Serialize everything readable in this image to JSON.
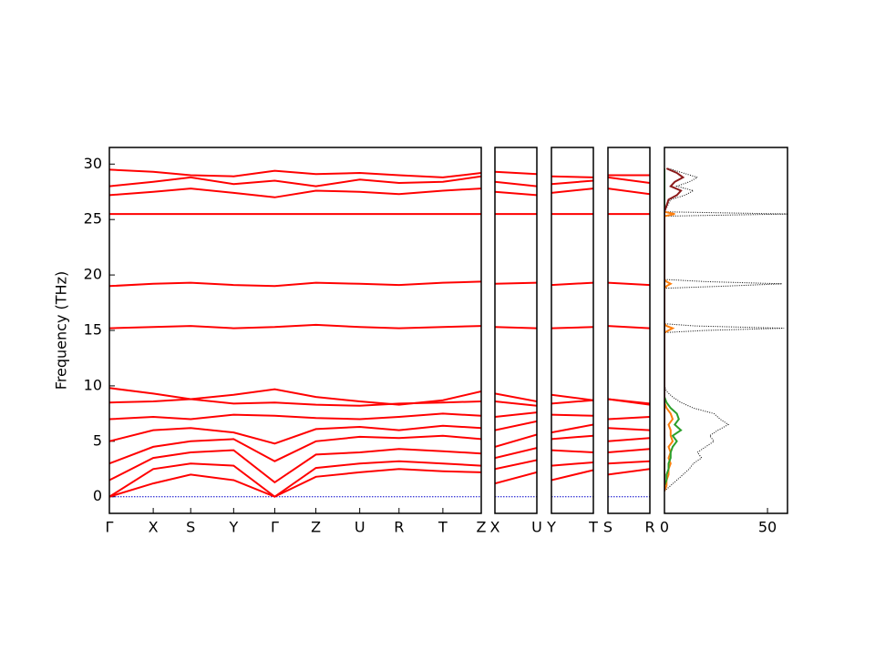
{
  "chart_data": [
    {
      "type": "line",
      "ylabel": "Frequency (THz)",
      "color": "#ff0000",
      "x": [
        0,
        0.48,
        0.89,
        1.36,
        1.81,
        2.26,
        2.74,
        3.17,
        3.65,
        4.07
      ],
      "xlim": [
        0,
        4.07
      ],
      "xticks": [
        {
          "value": 0,
          "label": "Γ"
        },
        {
          "value": 0.48,
          "label": "X"
        },
        {
          "value": 0.89,
          "label": "S"
        },
        {
          "value": 1.36,
          "label": "Y"
        },
        {
          "value": 1.81,
          "label": "Γ"
        },
        {
          "value": 2.26,
          "label": "Z"
        },
        {
          "value": 2.74,
          "label": "U"
        },
        {
          "value": 3.17,
          "label": "R"
        },
        {
          "value": 3.65,
          "label": "T"
        },
        {
          "value": 4.07,
          "label": "Z"
        }
      ],
      "ylim": [
        -1.5,
        31.5
      ],
      "yticks": [
        0,
        5,
        10,
        15,
        20,
        25,
        30
      ],
      "reference_line": {
        "y": 0,
        "color": "#0000cc"
      },
      "series": [
        {
          "values": [
            0,
            1.2,
            2.0,
            1.5,
            0,
            1.8,
            2.2,
            2.5,
            2.3,
            2.2
          ]
        },
        {
          "values": [
            0,
            2.5,
            3.0,
            2.8,
            0,
            2.6,
            3.0,
            3.2,
            3.0,
            2.8
          ]
        },
        {
          "values": [
            1.5,
            3.5,
            4.0,
            4.2,
            1.3,
            3.8,
            4.0,
            4.3,
            4.1,
            3.9
          ]
        },
        {
          "values": [
            3.0,
            4.5,
            5.0,
            5.2,
            3.2,
            5.0,
            5.4,
            5.3,
            5.5,
            5.2
          ]
        },
        {
          "values": [
            5.0,
            6.0,
            6.2,
            5.8,
            4.8,
            6.1,
            6.3,
            6.0,
            6.4,
            6.2
          ]
        },
        {
          "values": [
            7.0,
            7.2,
            7.0,
            7.4,
            7.3,
            7.1,
            7.0,
            7.2,
            7.5,
            7.3
          ]
        },
        {
          "values": [
            8.5,
            8.6,
            8.8,
            8.4,
            8.5,
            8.3,
            8.2,
            8.4,
            8.5,
            8.6
          ]
        },
        {
          "values": [
            9.8,
            9.3,
            8.8,
            9.2,
            9.7,
            9.0,
            8.6,
            8.3,
            8.7,
            9.5
          ]
        },
        {
          "values": [
            15.2,
            15.3,
            15.4,
            15.2,
            15.3,
            15.5,
            15.3,
            15.2,
            15.3,
            15.4
          ]
        },
        {
          "values": [
            19.0,
            19.2,
            19.3,
            19.1,
            19.0,
            19.3,
            19.2,
            19.1,
            19.3,
            19.4
          ]
        },
        {
          "values": [
            25.5,
            25.5,
            25.5,
            25.5,
            25.5,
            25.5,
            25.5,
            25.5,
            25.5,
            25.5
          ]
        },
        {
          "values": [
            27.2,
            27.5,
            27.8,
            27.4,
            27.0,
            27.6,
            27.5,
            27.3,
            27.6,
            27.8
          ]
        },
        {
          "values": [
            28.0,
            28.4,
            28.8,
            28.2,
            28.5,
            28.0,
            28.6,
            28.3,
            28.4,
            28.9
          ]
        },
        {
          "values": [
            29.5,
            29.3,
            29.0,
            28.9,
            29.4,
            29.1,
            29.2,
            29.0,
            28.8,
            29.2
          ]
        }
      ]
    },
    {
      "type": "line",
      "color": "#ff0000",
      "x": [
        0,
        0.46
      ],
      "xlim": [
        0,
        0.46
      ],
      "xticks": [
        {
          "value": 0,
          "label": "X"
        },
        {
          "value": 0.46,
          "label": "U"
        }
      ],
      "ylim": [
        -1.5,
        31.5
      ],
      "reference_line": {
        "y": 0,
        "color": "#0000cc"
      },
      "series": [
        {
          "values": [
            1.2,
            2.2
          ]
        },
        {
          "values": [
            2.5,
            3.3
          ]
        },
        {
          "values": [
            3.5,
            4.4
          ]
        },
        {
          "values": [
            4.5,
            5.6
          ]
        },
        {
          "values": [
            6.0,
            6.8
          ]
        },
        {
          "values": [
            7.2,
            7.6
          ]
        },
        {
          "values": [
            8.6,
            8.2
          ]
        },
        {
          "values": [
            9.3,
            8.6
          ]
        },
        {
          "values": [
            15.3,
            15.2
          ]
        },
        {
          "values": [
            19.2,
            19.3
          ]
        },
        {
          "values": [
            25.5,
            25.5
          ]
        },
        {
          "values": [
            27.5,
            27.2
          ]
        },
        {
          "values": [
            28.4,
            28.0
          ]
        },
        {
          "values": [
            29.3,
            29.1
          ]
        }
      ]
    },
    {
      "type": "line",
      "color": "#ff0000",
      "x": [
        0,
        0.46
      ],
      "xlim": [
        0,
        0.46
      ],
      "xticks": [
        {
          "value": 0,
          "label": "Y"
        },
        {
          "value": 0.46,
          "label": "T"
        }
      ],
      "ylim": [
        -1.5,
        31.5
      ],
      "reference_line": {
        "y": 0,
        "color": "#0000cc"
      },
      "series": [
        {
          "values": [
            1.5,
            2.4
          ]
        },
        {
          "values": [
            2.8,
            3.1
          ]
        },
        {
          "values": [
            4.2,
            4.0
          ]
        },
        {
          "values": [
            5.2,
            5.5
          ]
        },
        {
          "values": [
            5.8,
            6.5
          ]
        },
        {
          "values": [
            7.4,
            7.3
          ]
        },
        {
          "values": [
            8.4,
            8.7
          ]
        },
        {
          "values": [
            9.2,
            8.7
          ]
        },
        {
          "values": [
            15.2,
            15.3
          ]
        },
        {
          "values": [
            19.1,
            19.3
          ]
        },
        {
          "values": [
            25.5,
            25.5
          ]
        },
        {
          "values": [
            27.4,
            27.8
          ]
        },
        {
          "values": [
            28.2,
            28.5
          ]
        },
        {
          "values": [
            28.9,
            28.8
          ]
        }
      ]
    },
    {
      "type": "line",
      "color": "#ff0000",
      "x": [
        0,
        0.46
      ],
      "xlim": [
        0,
        0.46
      ],
      "xticks": [
        {
          "value": 0,
          "label": "S"
        },
        {
          "value": 0.46,
          "label": "R"
        }
      ],
      "ylim": [
        -1.5,
        31.5
      ],
      "reference_line": {
        "y": 0,
        "color": "#0000cc"
      },
      "series": [
        {
          "values": [
            2.0,
            2.5
          ]
        },
        {
          "values": [
            3.0,
            3.2
          ]
        },
        {
          "values": [
            4.0,
            4.3
          ]
        },
        {
          "values": [
            5.0,
            5.3
          ]
        },
        {
          "values": [
            6.2,
            6.0
          ]
        },
        {
          "values": [
            7.0,
            7.2
          ]
        },
        {
          "values": [
            8.8,
            8.4
          ]
        },
        {
          "values": [
            8.8,
            8.3
          ]
        },
        {
          "values": [
            15.4,
            15.2
          ]
        },
        {
          "values": [
            19.3,
            19.1
          ]
        },
        {
          "values": [
            25.5,
            25.5
          ]
        },
        {
          "values": [
            27.8,
            27.3
          ]
        },
        {
          "values": [
            28.8,
            28.3
          ]
        },
        {
          "values": [
            29.0,
            29.0
          ]
        }
      ]
    },
    {
      "type": "density",
      "xlim": [
        0,
        59.7
      ],
      "xticks": [
        0,
        50
      ],
      "ylim": [
        -1.5,
        31.5
      ],
      "y": [
        0.5,
        1,
        1.5,
        2,
        2.5,
        3,
        3.5,
        4,
        4.5,
        5,
        5.5,
        6,
        6.5,
        7,
        7.5,
        8,
        8.5,
        9,
        9.5,
        10,
        14.8,
        15,
        15.2,
        15.4,
        15.6,
        18.8,
        19,
        19.2,
        19.4,
        19.6,
        25.3,
        25.5,
        25.7,
        26.8,
        27.2,
        27.6,
        28,
        28.4,
        28.8,
        29.2,
        29.6
      ],
      "series": [
        {
          "color": "#000000",
          "linestyle": "dotted",
          "values": [
            0,
            3,
            6,
            9,
            12,
            14,
            18,
            16,
            20,
            24,
            22,
            26,
            31,
            27,
            24,
            14,
            8,
            4,
            1,
            0,
            0,
            20,
            58,
            15,
            0,
            0,
            30,
            57,
            20,
            0,
            0,
            60,
            0,
            3,
            10,
            14,
            6,
            12,
            16,
            9,
            2
          ]
        },
        {
          "color": "#ff7f0e",
          "values": [
            0,
            1,
            1,
            2,
            2,
            3,
            2,
            3,
            2,
            4,
            3,
            3,
            2,
            4,
            3,
            1,
            0,
            0,
            0,
            0,
            0,
            2,
            4,
            1,
            0,
            0,
            1,
            3,
            1,
            0,
            0,
            5,
            0,
            0,
            0,
            0,
            0,
            0,
            0,
            0,
            0
          ]
        },
        {
          "color": "#2ca02c",
          "values": [
            0,
            0,
            1,
            1,
            2,
            2,
            3,
            3,
            4,
            6,
            4,
            8,
            5,
            7,
            6,
            3,
            1,
            0,
            0,
            0,
            0,
            0,
            0,
            0,
            0,
            0,
            0,
            0,
            0,
            0,
            0,
            0,
            0,
            0,
            0,
            0,
            0,
            0,
            0,
            0,
            0
          ]
        },
        {
          "color": "#8b1a1a",
          "values": [
            0,
            0,
            0,
            0,
            0,
            0,
            0,
            0,
            0,
            0,
            0,
            0,
            0,
            0,
            0,
            0,
            0,
            0,
            0,
            0,
            0,
            0,
            0,
            0,
            0,
            0,
            0,
            0,
            0,
            0,
            0,
            0,
            0,
            2,
            6,
            8,
            3,
            5,
            9,
            6,
            1
          ]
        }
      ]
    }
  ]
}
